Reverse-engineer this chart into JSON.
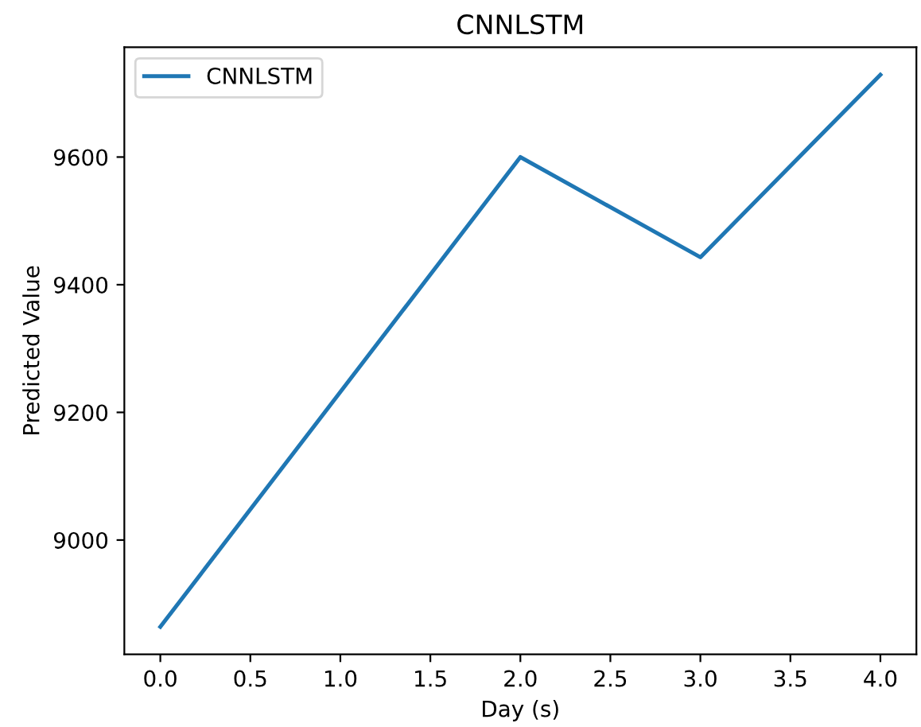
{
  "chart_data": {
    "type": "line",
    "title": "CNNLSTM",
    "xlabel": "Day (s)",
    "ylabel": "Predicted Value",
    "x": [
      0,
      1,
      2,
      3,
      4
    ],
    "series": [
      {
        "name": "CNNLSTM",
        "color": "#1f77b4",
        "values": [
          8864,
          9232,
          9600,
          9443,
          9729
        ]
      }
    ],
    "xlim": [
      -0.2,
      4.2
    ],
    "xticks": [
      {
        "value": 0,
        "label": "0.0"
      },
      {
        "value": 0.5,
        "label": "0.5"
      },
      {
        "value": 1,
        "label": "1.0"
      },
      {
        "value": 1.5,
        "label": "1.5"
      },
      {
        "value": 2,
        "label": "2.0"
      },
      {
        "value": 2.5,
        "label": "2.5"
      },
      {
        "value": 3,
        "label": "3.0"
      },
      {
        "value": 3.5,
        "label": "3.5"
      },
      {
        "value": 4,
        "label": "4.0"
      }
    ],
    "ylim": [
      8821,
      9772
    ],
    "yticks": [
      9000,
      9200,
      9400,
      9600
    ],
    "legend": "top left",
    "grid": false,
    "marker": "none",
    "line_style": "solid"
  }
}
